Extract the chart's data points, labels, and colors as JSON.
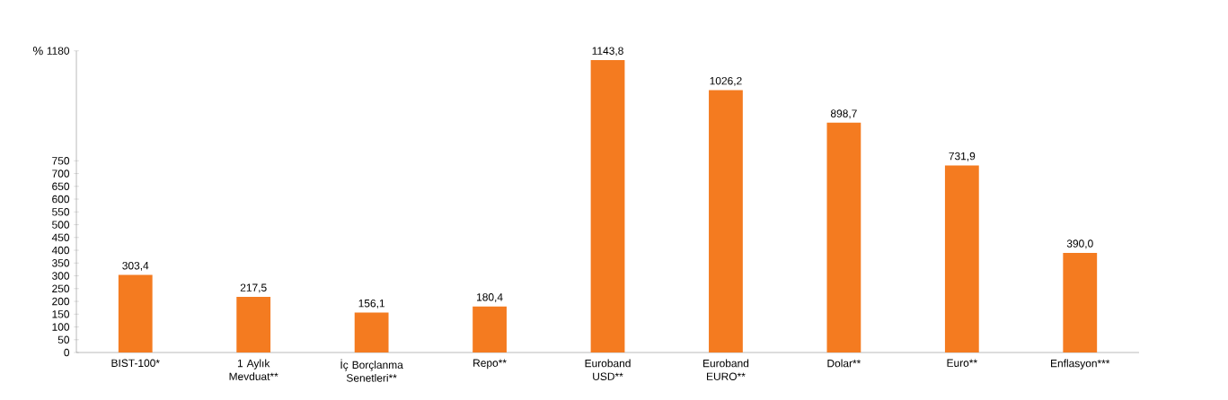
{
  "chart_data": {
    "type": "bar",
    "ylabel": "%",
    "categories": [
      "BIST-100*",
      "1 Aylık Mevduat**",
      "İç Borçlanma Senetleri**",
      "Repo**",
      "Euroband USD**",
      "Euroband EURO**",
      "Dolar**",
      "Euro**",
      "Enflasyon***"
    ],
    "values": [
      303.4,
      217.5,
      156.1,
      180.4,
      1143.8,
      1026.2,
      898.7,
      731.9,
      390.0
    ],
    "value_labels": [
      "303,4",
      "217,5",
      "156,1",
      "180,4",
      "1143,8",
      "1026,2",
      "898,7",
      "731,9",
      "390,0"
    ],
    "color": "#f47b20",
    "ylim": [
      0,
      1180
    ],
    "yticks": [
      0,
      50,
      100,
      150,
      200,
      250,
      300,
      350,
      400,
      450,
      500,
      550,
      600,
      650,
      700,
      750,
      1180
    ]
  }
}
